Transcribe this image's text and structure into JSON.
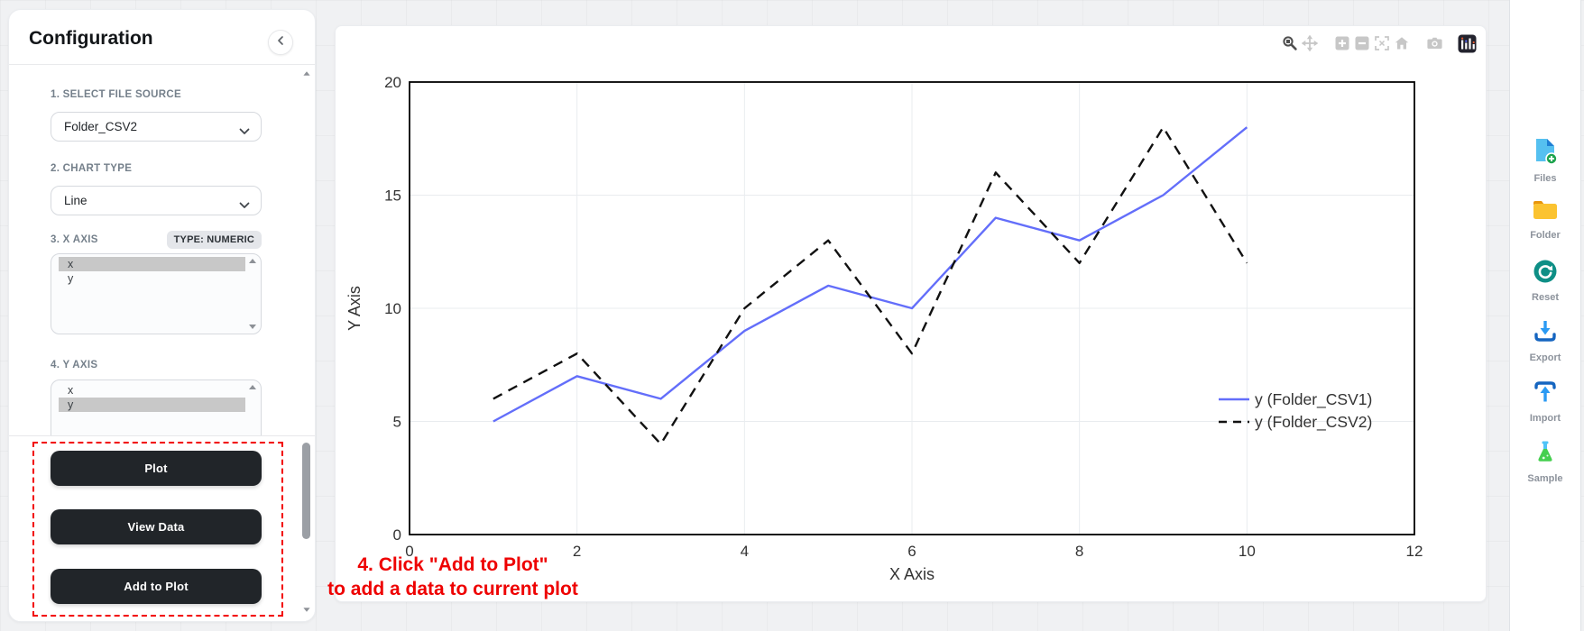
{
  "config_panel": {
    "title": "Configuration",
    "sections": {
      "file_source": {
        "label": "1. SELECT FILE SOURCE",
        "value": "Folder_CSV2"
      },
      "chart_type": {
        "label": "2. CHART TYPE",
        "value": "Line"
      },
      "x_axis": {
        "label": "3. X AXIS",
        "badge": "TYPE: NUMERIC",
        "options": [
          "x",
          "y"
        ],
        "selected": "x"
      },
      "y_axis": {
        "label": "4. Y AXIS",
        "options": [
          "x",
          "y"
        ],
        "selected": "y"
      }
    },
    "buttons": {
      "plot": "Plot",
      "view_data": "View Data",
      "add_to_plot": "Add to Plot"
    }
  },
  "annotation": {
    "line1": "4. Click \"Add to Plot\"",
    "line2": "to add a data to current plot",
    "color": "#ee0000"
  },
  "modebar_icons": [
    "zoom-icon",
    "pan-icon",
    "zoom-in-icon",
    "zoom-out-icon",
    "autoscale-icon",
    "reset-axes-icon",
    "camera-icon",
    "plotly-logo-icon"
  ],
  "sidebar": {
    "items": [
      {
        "icon": "file-plus-icon",
        "label": "Files"
      },
      {
        "icon": "folder-icon",
        "label": "Folder"
      },
      {
        "icon": "reset-icon",
        "label": "Reset"
      },
      {
        "icon": "export-icon",
        "label": "Export"
      },
      {
        "icon": "import-icon",
        "label": "Import"
      },
      {
        "icon": "sample-icon",
        "label": "Sample"
      }
    ]
  },
  "chart_data": {
    "type": "line",
    "title": "",
    "xlabel": "X Axis",
    "ylabel": "Y Axis",
    "xlim": [
      0,
      12
    ],
    "ylim": [
      0,
      20
    ],
    "xticks": [
      0,
      2,
      4,
      6,
      8,
      10,
      12
    ],
    "yticks": [
      0,
      5,
      10,
      15,
      20
    ],
    "grid": true,
    "legend_position": "inside-right",
    "x": [
      1,
      2,
      3,
      4,
      5,
      6,
      7,
      8,
      9,
      10
    ],
    "series": [
      {
        "name": "y (Folder_CSV1)",
        "style": "solid",
        "color": "#636efa",
        "values": [
          5,
          7,
          6,
          9,
          11,
          10,
          14,
          13,
          15,
          18
        ]
      },
      {
        "name": "y (Folder_CSV2)",
        "style": "dashed",
        "color": "#111111",
        "values": [
          6,
          8,
          4,
          10,
          13,
          8,
          16,
          12,
          18,
          12
        ]
      }
    ]
  },
  "colors": {
    "accent_blue_line": "#636efa",
    "dashed_black_line": "#111111",
    "annotation_red": "#ee0000",
    "button_dark": "#212529",
    "grid_line": "#e9ecef"
  }
}
